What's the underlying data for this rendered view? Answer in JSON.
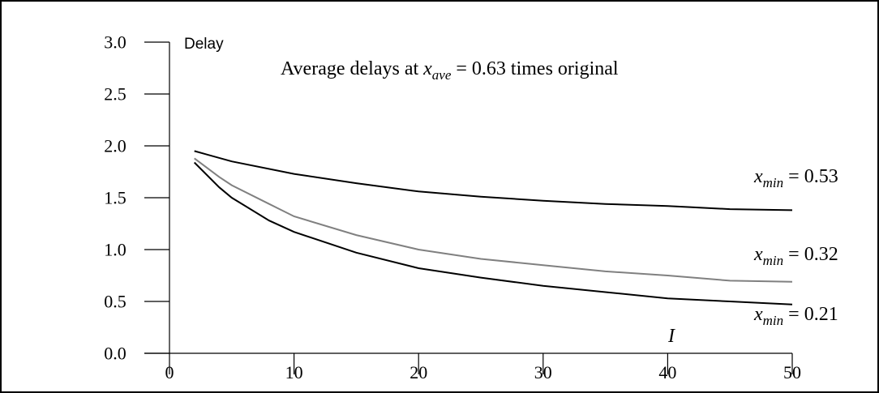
{
  "chart_data": {
    "type": "line",
    "title": {
      "prefix": "Average delays at ",
      "var": "x",
      "sub": "ave",
      "suffix": " = 0.63 times original"
    },
    "ylabel": "Delay",
    "xlabel": "I",
    "xlim": [
      0,
      50
    ],
    "ylim": [
      0,
      3.0
    ],
    "xticks": [
      "0",
      "10",
      "20",
      "30",
      "40",
      "50"
    ],
    "yticks": [
      "0.0",
      "0.5",
      "1.0",
      "1.5",
      "2.0",
      "2.5",
      "3.0"
    ],
    "grid": false,
    "series": [
      {
        "label": {
          "var": "x",
          "sub": "min",
          "value": " = 0.53"
        },
        "color": "#000000",
        "points": [
          [
            2,
            1.95
          ],
          [
            5,
            1.85
          ],
          [
            10,
            1.73
          ],
          [
            15,
            1.64
          ],
          [
            20,
            1.56
          ],
          [
            25,
            1.51
          ],
          [
            30,
            1.47
          ],
          [
            35,
            1.44
          ],
          [
            40,
            1.42
          ],
          [
            45,
            1.39
          ],
          [
            50,
            1.38
          ]
        ]
      },
      {
        "label": {
          "var": "x",
          "sub": "min",
          "value": " = 0.32"
        },
        "color": "#808080",
        "points": [
          [
            2,
            1.88
          ],
          [
            4,
            1.7
          ],
          [
            5,
            1.62
          ],
          [
            8,
            1.44
          ],
          [
            10,
            1.32
          ],
          [
            15,
            1.14
          ],
          [
            20,
            1.0
          ],
          [
            25,
            0.91
          ],
          [
            30,
            0.85
          ],
          [
            35,
            0.79
          ],
          [
            40,
            0.75
          ],
          [
            45,
            0.7
          ],
          [
            50,
            0.69
          ]
        ]
      },
      {
        "label": {
          "var": "x",
          "sub": "min",
          "value": " = 0.21"
        },
        "color": "#000000",
        "points": [
          [
            2,
            1.84
          ],
          [
            4,
            1.6
          ],
          [
            5,
            1.5
          ],
          [
            8,
            1.28
          ],
          [
            10,
            1.17
          ],
          [
            15,
            0.97
          ],
          [
            20,
            0.82
          ],
          [
            25,
            0.73
          ],
          [
            30,
            0.65
          ],
          [
            35,
            0.59
          ],
          [
            40,
            0.53
          ],
          [
            45,
            0.5
          ],
          [
            50,
            0.47
          ]
        ]
      }
    ]
  }
}
